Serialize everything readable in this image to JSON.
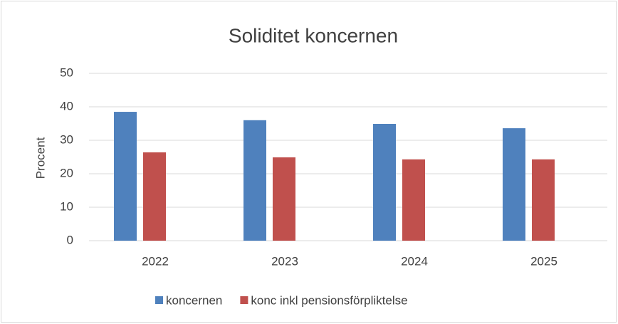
{
  "chart_data": {
    "type": "bar",
    "title": "Soliditet koncernen",
    "y_label": "Procent",
    "categories": [
      "2022",
      "2023",
      "2024",
      "2025"
    ],
    "series": [
      {
        "name": "koncernen",
        "color": "#4f81bd",
        "values": [
          38.5,
          36.0,
          34.9,
          33.6
        ]
      },
      {
        "name": "konc inkl pensionsförpliktelse",
        "color": "#c0504d",
        "values": [
          26.4,
          24.9,
          24.3,
          24.3
        ]
      }
    ],
    "ylim": [
      0,
      50
    ],
    "yticks": [
      0,
      10,
      20,
      30,
      40,
      50
    ],
    "grid": true,
    "legend": "bottom"
  }
}
